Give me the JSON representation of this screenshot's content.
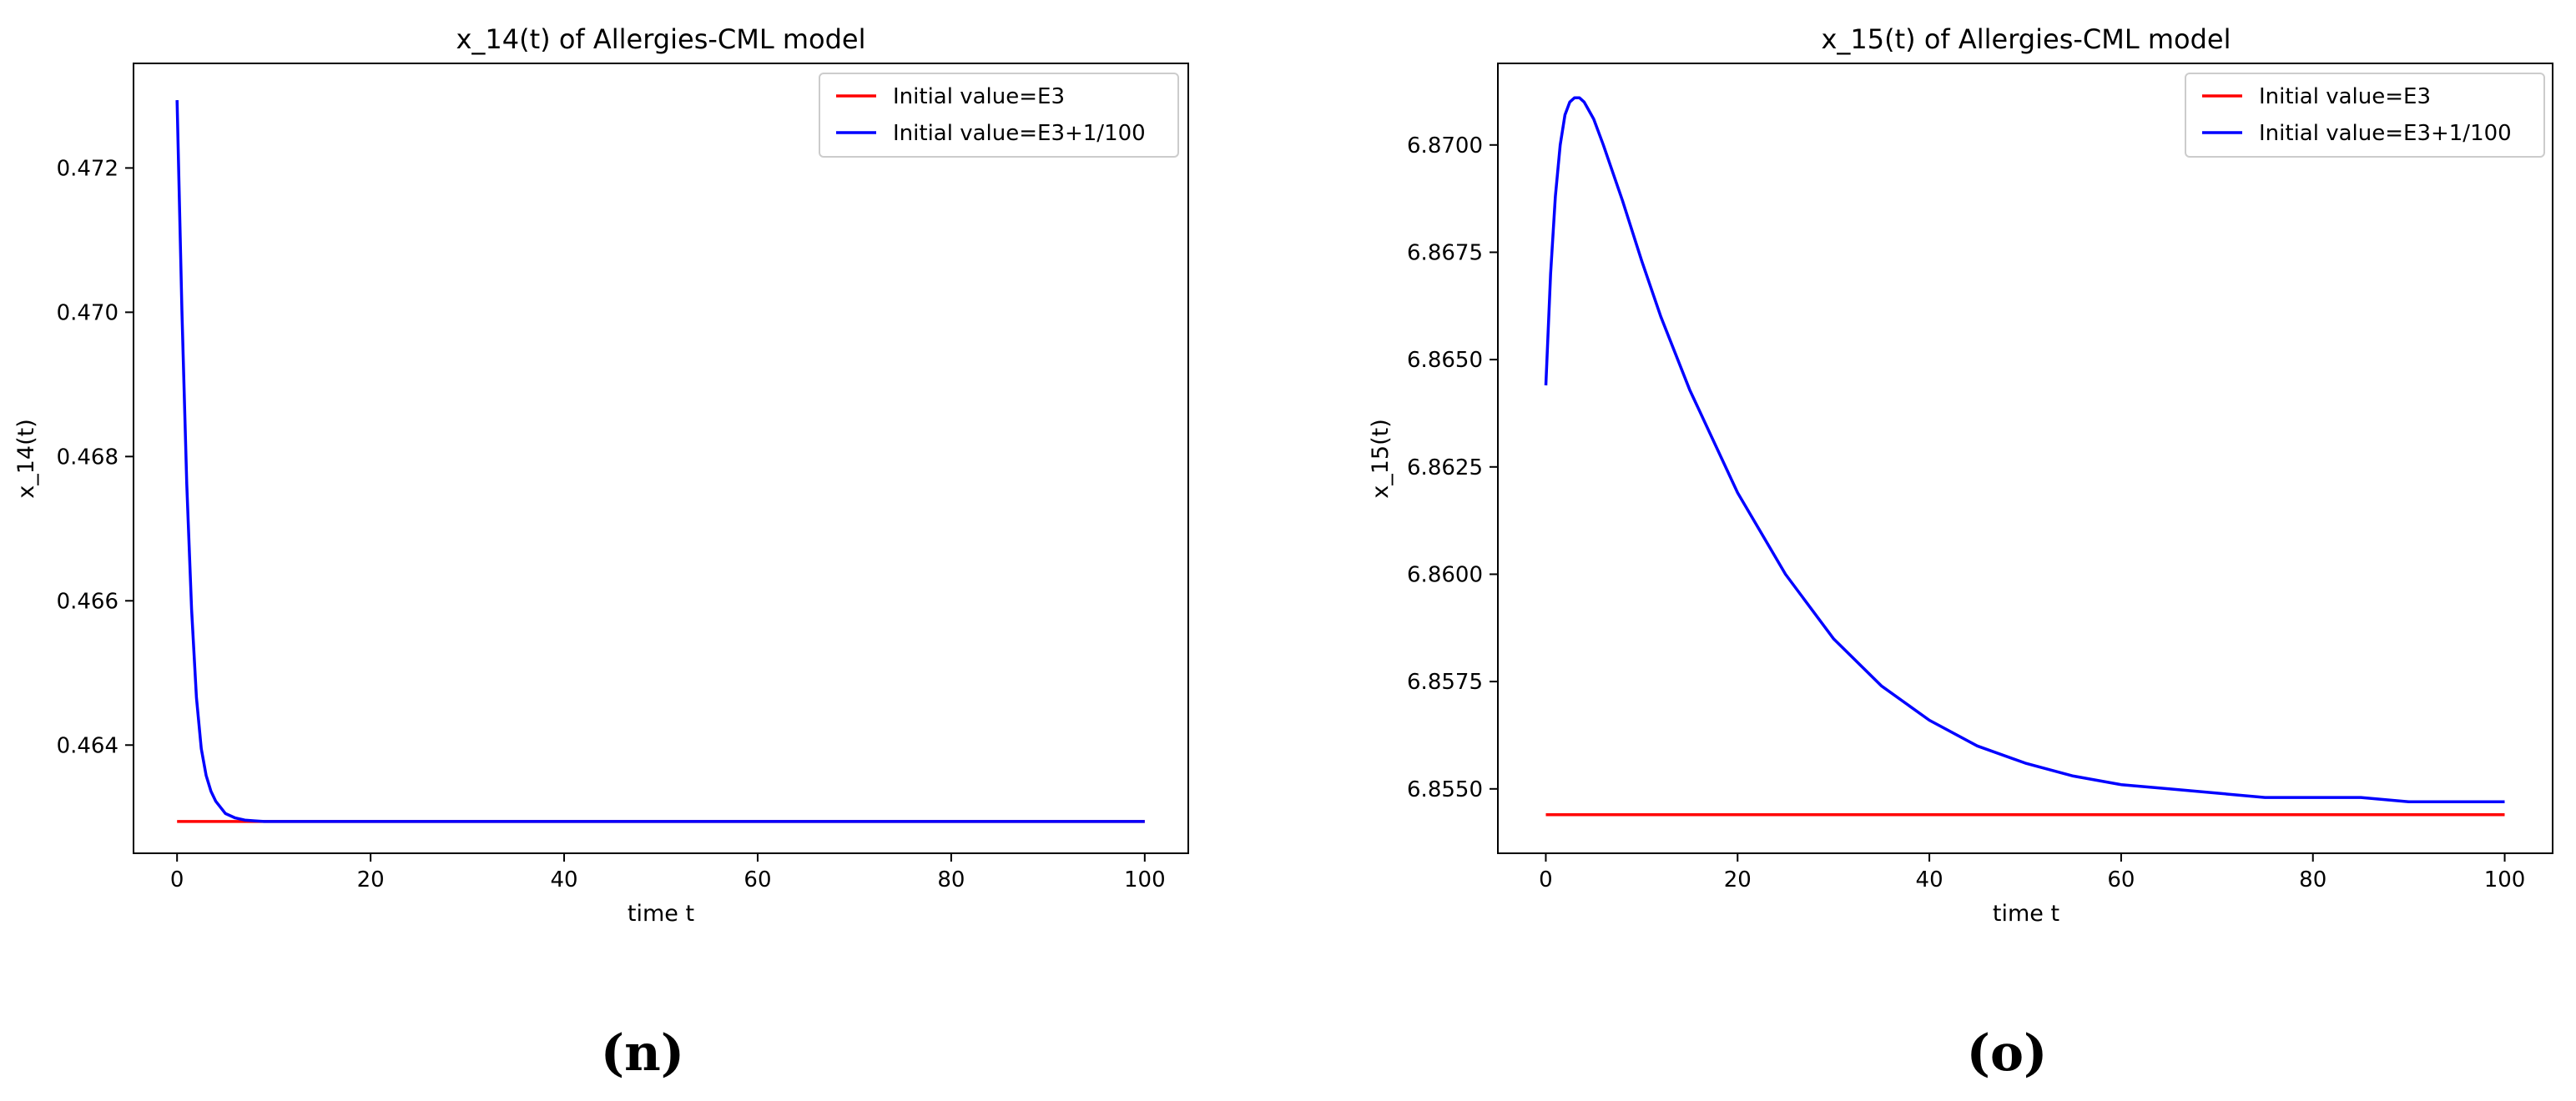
{
  "chart_data": [
    {
      "type": "line",
      "title": "x_14(t) of Allergies-CML model",
      "xlabel": "time t",
      "ylabel": "x_14(t)",
      "xlim": [
        -4.5,
        104.5
      ],
      "ylim": [
        0.4625,
        0.47345
      ],
      "xticks": [
        0,
        20,
        40,
        60,
        80,
        100
      ],
      "xtick_labels": [
        "0",
        "20",
        "40",
        "60",
        "80",
        "100"
      ],
      "yticks": [
        0.464,
        0.466,
        0.468,
        0.47,
        0.472
      ],
      "ytick_labels": [
        "0.464",
        "0.466",
        "0.468",
        "0.470",
        "0.472"
      ],
      "grid": false,
      "legend_position": "top-right",
      "panel_label": "(n)",
      "series": [
        {
          "name": "Initial value=E3",
          "color": "#ff0000",
          "x": [
            0,
            100
          ],
          "y": [
            0.46294,
            0.46294
          ]
        },
        {
          "name": "Initial value=E3+1/100",
          "color": "#0000ff",
          "x": [
            0,
            0.5,
            1,
            1.5,
            2,
            2.5,
            3,
            3.5,
            4,
            5,
            6,
            7,
            8,
            9,
            10,
            12,
            14,
            16,
            20,
            30,
            50,
            75,
            100
          ],
          "y": [
            0.47294,
            0.47002,
            0.46762,
            0.46588,
            0.46466,
            0.46395,
            0.46358,
            0.46336,
            0.46322,
            0.46305,
            0.46299,
            0.46296,
            0.46295,
            0.46294,
            0.46294,
            0.46294,
            0.46294,
            0.46294,
            0.46294,
            0.46294,
            0.46294,
            0.46294,
            0.46294
          ]
        }
      ]
    },
    {
      "type": "line",
      "title": "x_15(t) of Allergies-CML model",
      "xlabel": "time t",
      "ylabel": "x_15(t)",
      "xlim": [
        -5,
        105
      ],
      "ylim": [
        6.8535,
        6.8719
      ],
      "xticks": [
        0,
        20,
        40,
        60,
        80,
        100
      ],
      "xtick_labels": [
        "0",
        "20",
        "40",
        "60",
        "80",
        "100"
      ],
      "yticks": [
        6.855,
        6.8575,
        6.86,
        6.8625,
        6.865,
        6.8675,
        6.87
      ],
      "ytick_labels": [
        "6.8550",
        "6.8575",
        "6.8600",
        "6.8625",
        "6.8650",
        "6.8675",
        "6.8700"
      ],
      "grid": false,
      "legend_position": "top-right",
      "panel_label": "(o)",
      "series": [
        {
          "name": "Initial value=E3",
          "color": "#ff0000",
          "x": [
            0,
            100
          ],
          "y": [
            6.8544,
            6.8544
          ]
        },
        {
          "name": "Initial value=E3+1/100",
          "color": "#0000ff",
          "x": [
            0,
            0.5,
            1,
            1.5,
            2,
            2.5,
            3,
            3.5,
            4,
            4.5,
            5,
            6,
            8,
            10,
            12,
            15,
            20,
            25,
            30,
            35,
            40,
            45,
            50,
            55,
            60,
            65,
            70,
            75,
            80,
            85,
            90,
            95,
            100
          ],
          "y": [
            6.8644,
            6.867,
            6.8688,
            6.87,
            6.8707,
            6.871,
            6.8711,
            6.8711,
            6.871,
            6.8708,
            6.8706,
            6.87,
            6.8687,
            6.8673,
            6.866,
            6.8643,
            6.8619,
            6.86,
            6.8585,
            6.8574,
            6.8566,
            6.856,
            6.8556,
            6.8553,
            6.8551,
            6.855,
            6.8549,
            6.8548,
            6.8548,
            6.8548,
            6.8547,
            6.8547,
            6.8547
          ]
        }
      ]
    }
  ]
}
